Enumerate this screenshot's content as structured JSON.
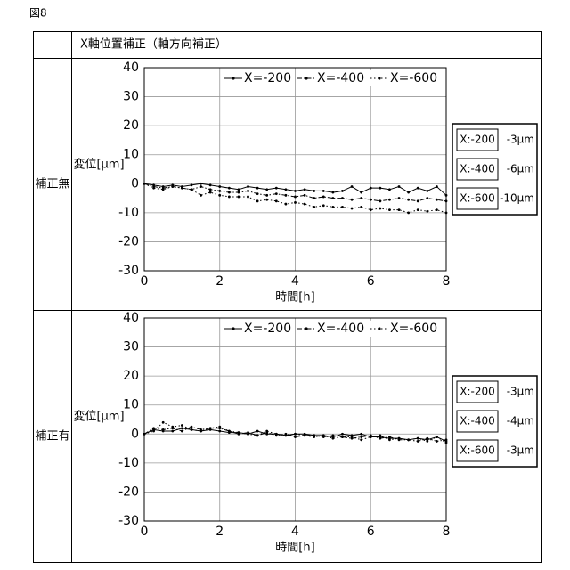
{
  "figure_label": "図8",
  "header": "X軸位置補正（軸方向補正）",
  "chart_data": [
    {
      "type": "line",
      "row_label": "補正無",
      "xlabel": "時間[h]",
      "ylabel": "変位[μm]",
      "xlim": [
        0,
        8
      ],
      "xticks": [
        0,
        2,
        4,
        6,
        8
      ],
      "ylim": [
        -30,
        40
      ],
      "yticks": [
        -30,
        -20,
        -10,
        0,
        10,
        20,
        30,
        40
      ],
      "grid": true,
      "x": [
        0,
        0.25,
        0.5,
        0.75,
        1,
        1.25,
        1.5,
        1.75,
        2,
        2.25,
        2.5,
        2.75,
        3,
        3.25,
        3.5,
        3.75,
        4,
        4.25,
        4.5,
        4.75,
        5,
        5.25,
        5.5,
        5.75,
        6,
        6.25,
        6.5,
        6.75,
        7,
        7.25,
        7.5,
        7.75,
        8
      ],
      "series": [
        {
          "name": "X=-200",
          "color": "#000000",
          "line_style": "solid",
          "values": [
            0,
            -0.5,
            -1,
            -0.5,
            -1,
            -0.5,
            0,
            -0.5,
            -1,
            -1.5,
            -2,
            -1,
            -1.5,
            -2,
            -1.5,
            -2,
            -2.5,
            -2,
            -2.5,
            -2.5,
            -3,
            -2.5,
            -1,
            -3,
            -1.5,
            -1.5,
            -2,
            -1,
            -3,
            -1.5,
            -2.5,
            -1,
            -4
          ]
        },
        {
          "name": "X=-400",
          "color": "#000000",
          "line_style": "dashdot",
          "values": [
            0,
            -1,
            -1.5,
            -1,
            -1.5,
            -2,
            -1,
            -2,
            -2.5,
            -3,
            -3,
            -2.5,
            -3.5,
            -4,
            -3.5,
            -4,
            -4.5,
            -4,
            -5,
            -4.5,
            -5,
            -5,
            -5.5,
            -5,
            -5.5,
            -6,
            -5.5,
            -5,
            -5.5,
            -6,
            -5,
            -5.5,
            -6
          ]
        },
        {
          "name": "X=-600",
          "color": "#000000",
          "line_style": "dotted",
          "values": [
            0,
            -1.5,
            -2,
            -1,
            -1.5,
            -2,
            -4,
            -3,
            -4,
            -4.5,
            -4.5,
            -4.5,
            -6,
            -5.5,
            -6,
            -7,
            -6.5,
            -7,
            -8,
            -7.5,
            -8,
            -8,
            -8.5,
            -8,
            -9,
            -8.5,
            -9,
            -9,
            -10,
            -9,
            -9.5,
            -9,
            -10
          ]
        }
      ],
      "summary": [
        {
          "label": "X:-200",
          "value": "-3μm"
        },
        {
          "label": "X:-400",
          "value": "-6μm"
        },
        {
          "label": "X:-600",
          "value": "-10μm"
        }
      ]
    },
    {
      "type": "line",
      "row_label": "補正有",
      "xlabel": "時間[h]",
      "ylabel": "変位[μm]",
      "xlim": [
        0,
        8
      ],
      "xticks": [
        0,
        2,
        4,
        6,
        8
      ],
      "ylim": [
        -30,
        40
      ],
      "yticks": [
        -30,
        -20,
        -10,
        0,
        10,
        20,
        30,
        40
      ],
      "grid": true,
      "x": [
        0,
        0.25,
        0.5,
        0.75,
        1,
        1.25,
        1.5,
        1.75,
        2,
        2.25,
        2.5,
        2.75,
        3,
        3.25,
        3.5,
        3.75,
        4,
        4.25,
        4.5,
        4.75,
        5,
        5.25,
        5.5,
        5.75,
        6,
        6.25,
        6.5,
        6.75,
        7,
        7.25,
        7.5,
        7.75,
        8
      ],
      "series": [
        {
          "name": "X=-200",
          "color": "#000000",
          "line_style": "solid",
          "values": [
            0,
            1.5,
            1,
            1,
            2,
            1.5,
            1,
            1.5,
            1,
            0.5,
            0.5,
            0,
            1,
            0,
            0,
            -0.5,
            0,
            0,
            -0.5,
            -0.5,
            -1,
            0,
            -0.5,
            0,
            -1,
            -1,
            -1.5,
            -1.5,
            -2,
            -1.5,
            -2,
            -1,
            -2.5
          ]
        },
        {
          "name": "X=-400",
          "color": "#000000",
          "line_style": "dashdot",
          "values": [
            0,
            2,
            1.5,
            2,
            1,
            2.5,
            1.5,
            2,
            2,
            1,
            0,
            0.5,
            -0.5,
            0.5,
            -0.5,
            0,
            -1,
            -0.5,
            -0.5,
            -1,
            -0.5,
            -1,
            -1.5,
            -1,
            -0.5,
            -1.5,
            -1,
            -2,
            -2,
            -2.5,
            -1.5,
            -2.5,
            -2
          ]
        },
        {
          "name": "X=-600",
          "color": "#000000",
          "line_style": "dotted",
          "values": [
            0,
            1,
            4,
            2.5,
            3,
            1.5,
            1,
            2,
            2.5,
            1,
            0.5,
            0,
            -0.5,
            1,
            0,
            -0.5,
            0,
            -0.5,
            -1,
            -0.5,
            -1.5,
            -1,
            -1,
            -2,
            -1,
            -0.5,
            -2,
            -1.5,
            -2,
            -1.5,
            -2.5,
            -1,
            -3
          ]
        }
      ],
      "summary": [
        {
          "label": "X:-200",
          "value": "-3μm"
        },
        {
          "label": "X:-400",
          "value": "-4μm"
        },
        {
          "label": "X:-600",
          "value": "-3μm"
        }
      ]
    }
  ]
}
